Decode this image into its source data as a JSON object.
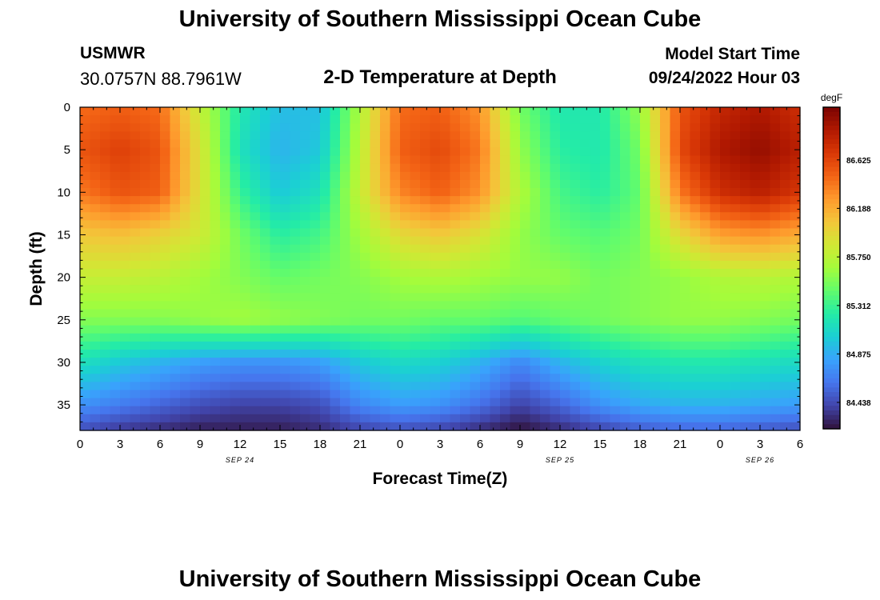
{
  "header": {
    "title": "University of Southern Mississippi Ocean Cube",
    "station": "USMWR",
    "coords": "30.0757N  88.7961W",
    "plot_title": "2-D Temperature at Depth",
    "model_start_label": "Model Start Time",
    "model_start_value": "09/24/2022 Hour 03"
  },
  "footer": {
    "title": "University of Southern Mississippi Ocean Cube"
  },
  "colors": {
    "colormap": [
      "#30123b",
      "#4145ab",
      "#4675ed",
      "#39a2fc",
      "#1bcfd4",
      "#24eca6",
      "#61fc6c",
      "#a4fc3b",
      "#d1e834",
      "#f3c63a",
      "#fe9b2d",
      "#f36315",
      "#d93806",
      "#b11901",
      "#7a0402"
    ]
  },
  "chart_data": {
    "type": "heatmap",
    "title": "2-D Temperature at Depth",
    "xlabel": "Forecast Time(Z)",
    "ylabel": "Depth (ft)",
    "x_tick_labels": [
      "0",
      "3",
      "6",
      "9",
      "12",
      "15",
      "18",
      "21",
      "0",
      "3",
      "6",
      "9",
      "12",
      "15",
      "18",
      "21",
      "0",
      "3",
      "6"
    ],
    "x_range_hours": [
      0,
      54
    ],
    "date_labels": [
      {
        "label": "SEP 24",
        "hour": 12
      },
      {
        "label": "SEP 25",
        "hour": 36
      },
      {
        "label": "SEP 26",
        "hour": 51
      }
    ],
    "y_tick_labels": [
      "0",
      "5",
      "10",
      "15",
      "20",
      "25",
      "30",
      "35"
    ],
    "y_range_ft": [
      0,
      38
    ],
    "colorbar": {
      "unit": "degF",
      "range": [
        84.2,
        87.1
      ],
      "tick_labels": [
        "86.625",
        "86.188",
        "85.750",
        "85.312",
        "84.875",
        "84.438"
      ],
      "tick_values": [
        86.625,
        86.188,
        85.75,
        85.312,
        84.875,
        84.438
      ]
    },
    "depths_ft": [
      0,
      5,
      10,
      15,
      20,
      25,
      30,
      35,
      38
    ],
    "times_h": [
      0,
      3,
      6,
      9,
      12,
      15,
      18,
      21,
      24,
      27,
      30,
      33,
      36,
      39,
      42,
      45,
      48,
      51,
      54
    ],
    "values_degF": [
      [
        86.45,
        86.5,
        86.45,
        85.8,
        85.2,
        84.95,
        84.95,
        85.7,
        86.45,
        86.5,
        86.3,
        85.5,
        85.2,
        85.2,
        85.6,
        86.55,
        86.8,
        86.9,
        86.75
      ],
      [
        86.55,
        86.65,
        86.55,
        85.9,
        85.15,
        84.9,
        85.0,
        85.75,
        86.5,
        86.6,
        86.4,
        85.6,
        85.25,
        85.2,
        85.5,
        86.6,
        86.9,
        87.0,
        86.85
      ],
      [
        86.4,
        86.55,
        86.5,
        85.9,
        85.3,
        85.0,
        85.15,
        85.8,
        86.35,
        86.5,
        86.3,
        85.7,
        85.35,
        85.25,
        85.45,
        86.4,
        86.75,
        86.85,
        86.7
      ],
      [
        86.05,
        86.1,
        86.0,
        85.85,
        85.5,
        85.25,
        85.35,
        85.65,
        85.95,
        86.05,
        85.9,
        85.6,
        85.45,
        85.4,
        85.5,
        85.95,
        86.25,
        86.3,
        86.2
      ],
      [
        85.8,
        85.8,
        85.75,
        85.65,
        85.55,
        85.45,
        85.5,
        85.55,
        85.65,
        85.7,
        85.65,
        85.6,
        85.6,
        85.5,
        85.55,
        85.6,
        85.7,
        85.75,
        85.7
      ],
      [
        85.55,
        85.55,
        85.55,
        85.6,
        85.65,
        85.6,
        85.55,
        85.5,
        85.5,
        85.45,
        85.45,
        85.4,
        85.45,
        85.5,
        85.55,
        85.6,
        85.6,
        85.55,
        85.5
      ],
      [
        85.15,
        85.0,
        84.9,
        84.8,
        84.75,
        84.75,
        84.8,
        85.0,
        85.1,
        85.05,
        84.9,
        84.7,
        84.9,
        85.05,
        85.15,
        85.2,
        85.2,
        85.15,
        85.1
      ],
      [
        84.75,
        84.65,
        84.55,
        84.45,
        84.4,
        84.4,
        84.45,
        84.7,
        84.8,
        84.75,
        84.6,
        84.4,
        84.55,
        84.75,
        84.85,
        84.9,
        84.9,
        84.85,
        84.8
      ],
      [
        84.45,
        84.35,
        84.3,
        84.25,
        84.25,
        84.25,
        84.3,
        84.4,
        84.45,
        84.4,
        84.3,
        84.2,
        84.3,
        84.4,
        84.5,
        84.55,
        84.55,
        84.5,
        84.45
      ]
    ]
  }
}
